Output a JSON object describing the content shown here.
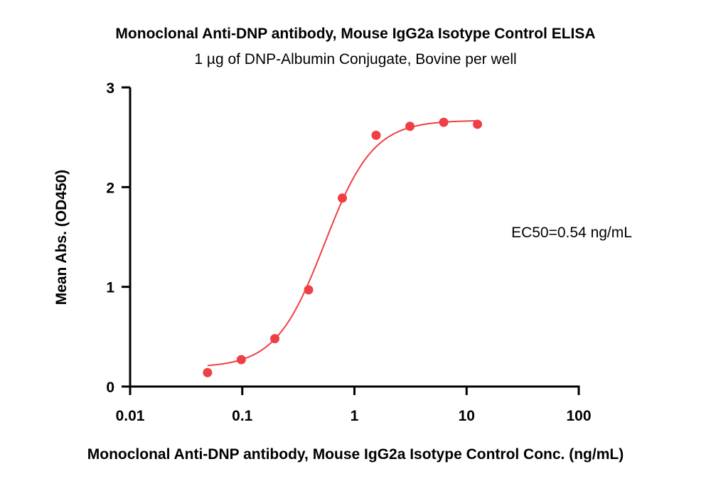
{
  "chart_data": {
    "type": "scatter",
    "title": "Monoclonal Anti-DNP antibody, Mouse IgG2a Isotype Control ELISA",
    "subtitle": "1 µg of DNP-Albumin Conjugate, Bovine per well",
    "xlabel": "Monoclonal Anti-DNP antibody, Mouse IgG2a Isotype Control Conc. (ng/mL)",
    "ylabel": "Mean Abs. (OD450)",
    "x_scale": "log",
    "xlim": [
      0.01,
      100
    ],
    "ylim": [
      0,
      3
    ],
    "x_ticks": [
      0.01,
      0.1,
      1,
      10,
      100
    ],
    "x_tick_labels": [
      "0.01",
      "0.1",
      "1",
      "10",
      "100"
    ],
    "y_ticks": [
      0,
      1,
      2,
      3
    ],
    "y_tick_labels": [
      "0",
      "1",
      "2",
      "3"
    ],
    "grid": false,
    "annotation": "EC50=0.54 ng/mL",
    "series": [
      {
        "x": [
          0.049,
          0.098,
          0.195,
          0.39,
          0.78,
          1.56,
          3.125,
          6.25,
          12.5
        ],
        "y": [
          0.14,
          0.27,
          0.48,
          0.97,
          1.89,
          2.52,
          2.61,
          2.65,
          2.63
        ]
      }
    ],
    "fit": {
      "type": "4PL",
      "bottom": 0.19,
      "top": 2.67,
      "ec50": 0.54,
      "hill": 2.0
    },
    "colors": {
      "series": "#ef3f45",
      "axis": "#000000"
    }
  }
}
